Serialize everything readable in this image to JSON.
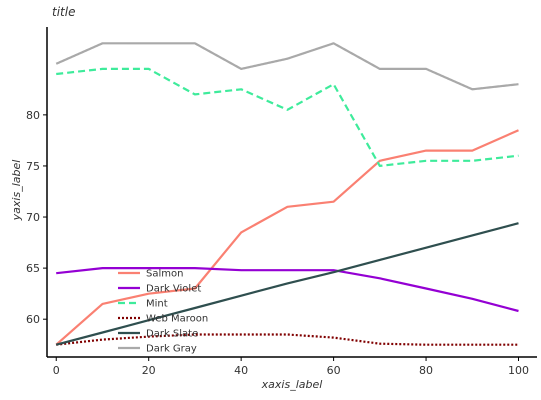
{
  "chart_data": {
    "type": "line",
    "title": "title",
    "xlabel": "xaxis_label",
    "ylabel": "yaxis_label",
    "xlim": [
      -2,
      104
    ],
    "ylim": [
      56.3,
      88.6
    ],
    "x_ticks": [
      0,
      20,
      40,
      60,
      80,
      100
    ],
    "y_ticks": [
      60,
      65,
      70,
      75,
      80
    ],
    "grid": false,
    "legend_position": "center",
    "x": [
      0,
      10,
      20,
      30,
      40,
      50,
      60,
      70,
      80,
      90,
      100
    ],
    "series": [
      {
        "name": "Salmon",
        "color": "#FA8072",
        "values": [
          57.5,
          61.5,
          62.5,
          63.0,
          68.5,
          71.0,
          71.5,
          75.5,
          76.5,
          76.5,
          78.5
        ]
      },
      {
        "name": "Dark Violet",
        "color": "#9400D3",
        "values": [
          64.5,
          65.0,
          65.0,
          65.0,
          64.8,
          64.8,
          64.8,
          64.0,
          63.0,
          62.0,
          60.8
        ]
      },
      {
        "name": "Mint",
        "color": "#3EEB9B",
        "values": [
          84.0,
          84.5,
          84.5,
          82.0,
          82.5,
          80.5,
          83.0,
          75.0,
          75.5,
          75.5,
          76.0
        ]
      },
      {
        "name": "Web Maroon",
        "color": "#800000",
        "values": [
          57.5,
          58.0,
          58.3,
          58.5,
          58.5,
          58.5,
          58.2,
          57.6,
          57.5,
          57.5,
          57.5
        ]
      },
      {
        "name": "Dark Slate",
        "color": "#2F4F4F",
        "values": [
          57.5,
          58.7,
          59.9,
          61.1,
          62.3,
          63.5,
          64.6,
          65.8,
          67.0,
          68.2,
          69.4
        ]
      },
      {
        "name": "Dark Gray",
        "color": "#A9A9A9",
        "values": [
          85.0,
          87.0,
          87.0,
          87.0,
          84.5,
          85.5,
          87.0,
          84.5,
          84.5,
          82.5,
          83.0
        ]
      }
    ]
  }
}
